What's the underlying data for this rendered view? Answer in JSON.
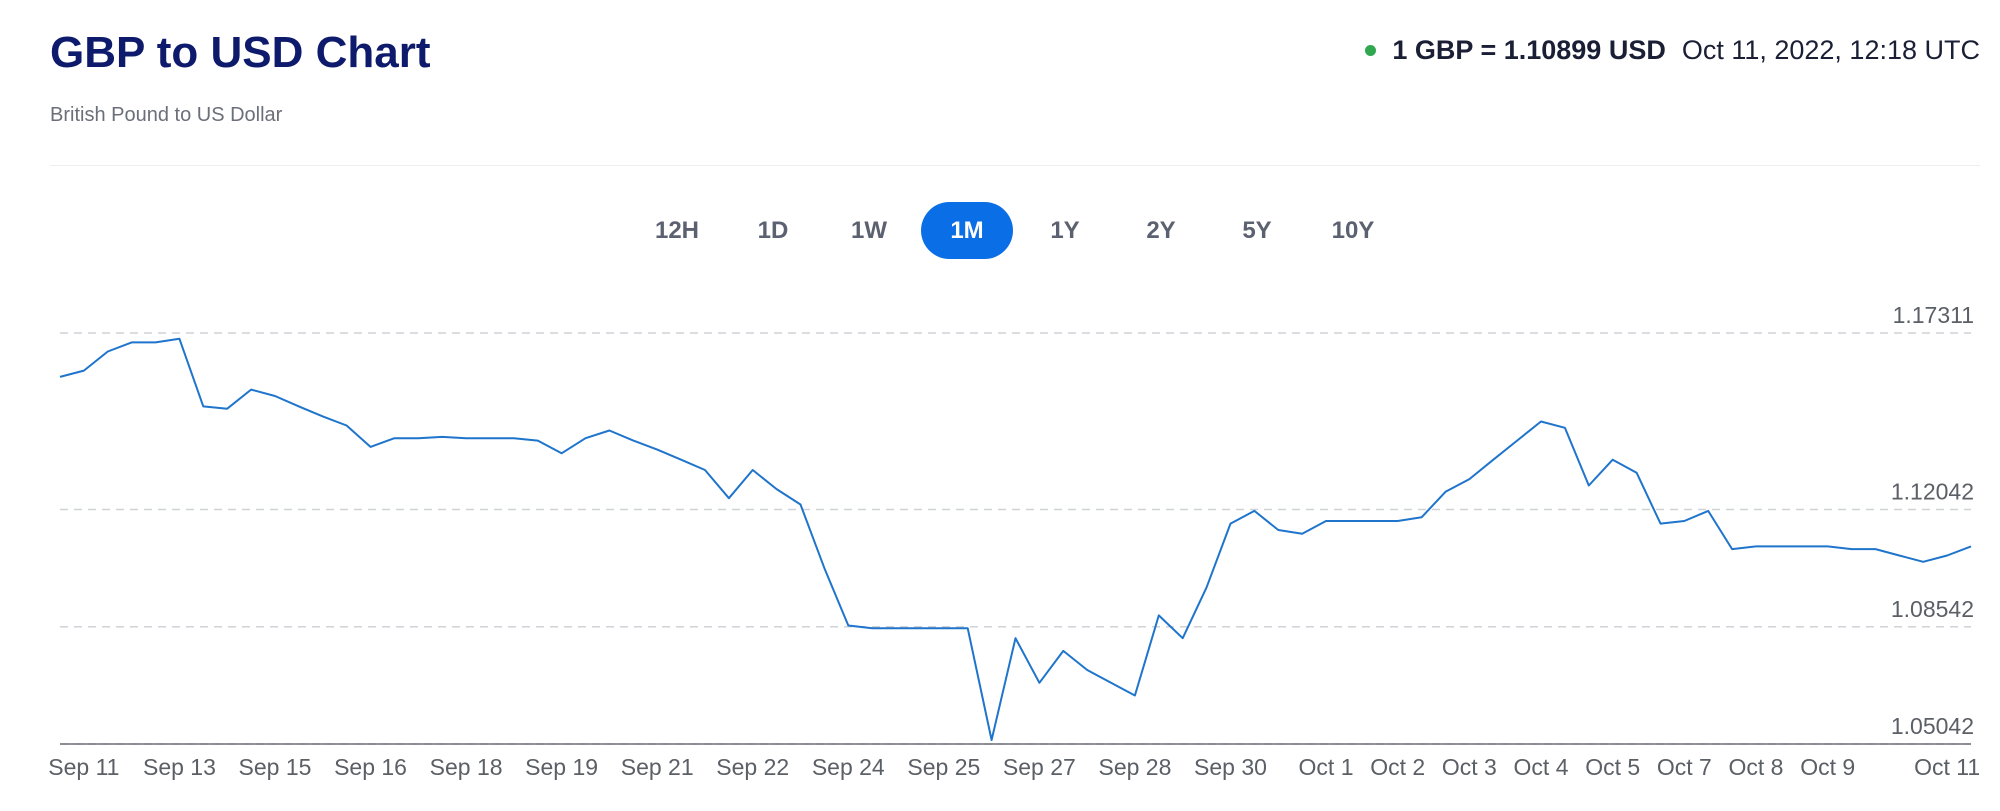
{
  "header": {
    "title": "GBP to USD Chart",
    "subtitle": "British Pound to US Dollar",
    "rate": "1 GBP = 1.10899 USD",
    "timestamp": "Oct 11, 2022, 12:18 UTC"
  },
  "range_buttons": [
    "12H",
    "1D",
    "1W",
    "1M",
    "1Y",
    "2Y",
    "5Y",
    "10Y"
  ],
  "chart_data": {
    "type": "line",
    "color": "#1f74cc",
    "categories": [
      null,
      "Sep 11",
      null,
      null,
      null,
      "Sep 13",
      null,
      null,
      null,
      "Sep 15",
      null,
      null,
      null,
      "Sep 16",
      null,
      null,
      null,
      "Sep 18",
      null,
      null,
      null,
      "Sep 19",
      null,
      null,
      null,
      "Sep 21",
      null,
      null,
      null,
      "Sep 22",
      null,
      null,
      null,
      "Sep 24",
      null,
      null,
      null,
      "Sep 25",
      null,
      null,
      null,
      "Sep 27",
      null,
      null,
      null,
      "Sep 28",
      null,
      null,
      null,
      "Sep 30",
      null,
      null,
      null,
      "Oct 1",
      null,
      null,
      "Oct 2",
      null,
      null,
      "Oct 3",
      null,
      null,
      "Oct 4",
      null,
      null,
      "Oct 5",
      null,
      null,
      "Oct 7",
      null,
      null,
      "Oct 8",
      null,
      null,
      "Oct 9",
      null,
      null,
      null,
      null,
      "Oct 11",
      null
    ],
    "values": [
      1.16,
      1.1619,
      1.1676,
      1.1703,
      1.1703,
      1.1714,
      1.1512,
      1.1505,
      1.1562,
      1.1543,
      1.1512,
      1.1482,
      1.1455,
      1.1391,
      1.1417,
      1.1417,
      1.1421,
      1.1417,
      1.1417,
      1.1417,
      1.141,
      1.1372,
      1.1417,
      1.144,
      1.141,
      1.1383,
      1.1353,
      1.1322,
      1.1238,
      1.1322,
      1.1265,
      1.1219,
      1.1029,
      1.0858,
      1.085,
      1.085,
      1.085,
      1.085,
      1.085,
      1.0516,
      1.082,
      1.0687,
      1.0782,
      1.0725,
      1.0687,
      1.0649,
      1.0888,
      1.082,
      1.0972,
      1.1162,
      1.12,
      1.1143,
      1.1132,
      1.117,
      1.117,
      1.117,
      1.117,
      1.1181,
      1.1257,
      1.1295,
      1.1353,
      1.141,
      1.1467,
      1.1448,
      1.1276,
      1.1353,
      1.1314,
      1.1162,
      1.117,
      1.12,
      1.1086,
      1.1094,
      1.1094,
      1.1094,
      1.1094,
      1.1086,
      1.1086,
      1.1067,
      1.1048,
      1.1067,
      1.1094
    ],
    "ylim": [
      1.05042,
      1.17311
    ],
    "yticks": [
      1.05042,
      1.08542,
      1.12042,
      1.17311
    ],
    "grid": true
  }
}
